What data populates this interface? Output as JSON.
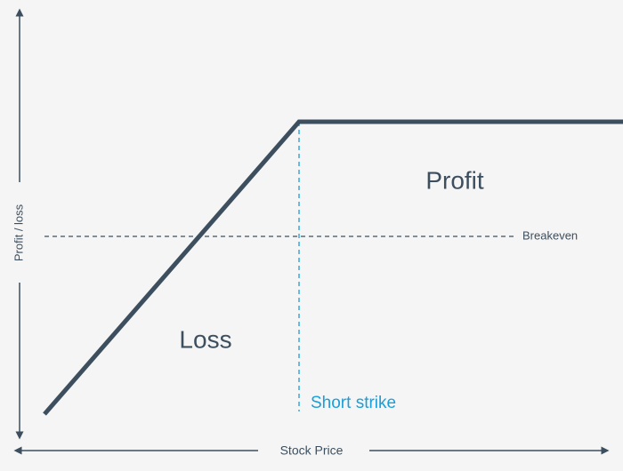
{
  "diagram": {
    "y_axis_label": "Profit / loss",
    "x_axis_label": "Stock Price",
    "breakeven_label": "Breakeven",
    "strike_label": "Short strike",
    "profit_label": "Profit",
    "loss_label": "Loss"
  },
  "colors": {
    "background": "#f5f5f5",
    "payoff_line": "#3d4f5e",
    "axis": "#3d4f5e",
    "breakeven_line": "#3d4f5e",
    "strike_line": "#1a9fd9",
    "strike_text": "#1a9fd9",
    "region_text": "#3d4f5e"
  }
}
